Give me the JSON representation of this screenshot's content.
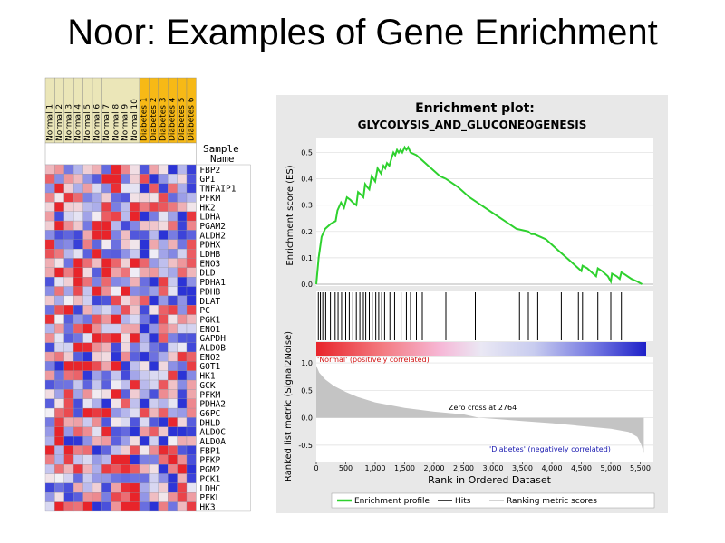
{
  "slide": {
    "title": "Noor: Examples of Gene Enrichment"
  },
  "heatmap": {
    "sample_header": [
      "Sample",
      "Name"
    ],
    "samples": [
      {
        "label": "Normal 1",
        "group": "normal"
      },
      {
        "label": "Normal 2",
        "group": "normal"
      },
      {
        "label": "Normal 3",
        "group": "normal"
      },
      {
        "label": "Normal 4",
        "group": "normal"
      },
      {
        "label": "Normal 5",
        "group": "normal"
      },
      {
        "label": "Normal 6",
        "group": "normal"
      },
      {
        "label": "Normal 7",
        "group": "normal"
      },
      {
        "label": "Normal 8",
        "group": "normal"
      },
      {
        "label": "Normal 9",
        "group": "normal"
      },
      {
        "label": "Normal 10",
        "group": "normal"
      },
      {
        "label": "Diabetes 1",
        "group": "diabetes"
      },
      {
        "label": "Diabetes 2",
        "group": "diabetes"
      },
      {
        "label": "Diabetes 3",
        "group": "diabetes"
      },
      {
        "label": "Diabetes 4",
        "group": "diabetes"
      },
      {
        "label": "Diabetes 5",
        "group": "diabetes"
      },
      {
        "label": "Diabetes 6",
        "group": "diabetes"
      }
    ],
    "genes": [
      "FBP2",
      "GPI",
      "TNFAIP1",
      "PFKM",
      "HK2",
      "LDHA",
      "PGAM2",
      "ALDH2",
      "PDHX",
      "LDHB",
      "ENO3",
      "DLD",
      "PDHA1",
      "PDHB",
      "DLAT",
      "PC",
      "PGK1",
      "ENO1",
      "GAPDH",
      "ALDOB",
      "ENO2",
      "GOT1",
      "HK1",
      "GCK",
      "PFKM",
      "PDHA2",
      "G6PC",
      "DHLD",
      "ALDOC",
      "ALDOA",
      "FBP1",
      "PFKP",
      "PGM2",
      "PCK1",
      "LDHC",
      "PFKL",
      "HK3"
    ],
    "colors": {
      "normal_bg": "#ebe6b8",
      "diabetes_bg": "#f7b916",
      "high": "#e8242a",
      "low": "#2b33d6",
      "mid": "#f2f0f5"
    }
  },
  "chart_data": {
    "type": "line",
    "title": "Enrichment plot:",
    "subtitle": "GLYCOLYSIS_AND_GLUCONEOGENESIS",
    "es_panel": {
      "ylabel": "Enrichment score (ES)",
      "yticks": [
        "0.5",
        "0.4",
        "0.3",
        "0.2",
        "0.1",
        "0.0"
      ],
      "ylim": [
        0.0,
        0.55
      ],
      "points": [
        [
          0,
          0.0
        ],
        [
          40,
          0.1
        ],
        [
          90,
          0.18
        ],
        [
          150,
          0.21
        ],
        [
          250,
          0.23
        ],
        [
          330,
          0.24
        ],
        [
          360,
          0.28
        ],
        [
          420,
          0.31
        ],
        [
          470,
          0.29
        ],
        [
          520,
          0.33
        ],
        [
          580,
          0.32
        ],
        [
          620,
          0.31
        ],
        [
          680,
          0.3
        ],
        [
          710,
          0.35
        ],
        [
          760,
          0.34
        ],
        [
          800,
          0.33
        ],
        [
          830,
          0.38
        ],
        [
          860,
          0.37
        ],
        [
          900,
          0.36
        ],
        [
          940,
          0.41
        ],
        [
          970,
          0.4
        ],
        [
          1000,
          0.39
        ],
        [
          1040,
          0.44
        ],
        [
          1070,
          0.43
        ],
        [
          1100,
          0.42
        ],
        [
          1140,
          0.45
        ],
        [
          1170,
          0.44
        ],
        [
          1200,
          0.46
        ],
        [
          1240,
          0.45
        ],
        [
          1280,
          0.48
        ],
        [
          1310,
          0.5
        ],
        [
          1340,
          0.49
        ],
        [
          1370,
          0.51
        ],
        [
          1400,
          0.5
        ],
        [
          1430,
          0.51
        ],
        [
          1460,
          0.5
        ],
        [
          1500,
          0.52
        ],
        [
          1530,
          0.51
        ],
        [
          1560,
          0.52
        ],
        [
          1600,
          0.5
        ],
        [
          1700,
          0.49
        ],
        [
          1800,
          0.47
        ],
        [
          1900,
          0.45
        ],
        [
          2000,
          0.43
        ],
        [
          2100,
          0.41
        ],
        [
          2200,
          0.4
        ],
        [
          2400,
          0.37
        ],
        [
          2600,
          0.33
        ],
        [
          2800,
          0.3
        ],
        [
          3000,
          0.27
        ],
        [
          3200,
          0.24
        ],
        [
          3400,
          0.21
        ],
        [
          3600,
          0.2
        ],
        [
          3650,
          0.19
        ],
        [
          3700,
          0.19
        ],
        [
          3800,
          0.18
        ],
        [
          3900,
          0.17
        ],
        [
          4000,
          0.15
        ],
        [
          4100,
          0.13
        ],
        [
          4200,
          0.11
        ],
        [
          4300,
          0.09
        ],
        [
          4400,
          0.07
        ],
        [
          4500,
          0.05
        ],
        [
          4520,
          0.07
        ],
        [
          4600,
          0.06
        ],
        [
          4700,
          0.04
        ],
        [
          4750,
          0.03
        ],
        [
          4780,
          0.06
        ],
        [
          4850,
          0.05
        ],
        [
          4950,
          0.03
        ],
        [
          5000,
          0.01
        ],
        [
          5020,
          0.04
        ],
        [
          5100,
          0.03
        ],
        [
          5150,
          0.02
        ],
        [
          5180,
          0.045
        ],
        [
          5250,
          0.035
        ],
        [
          5350,
          0.02
        ],
        [
          5450,
          0.01
        ],
        [
          5530,
          0.0
        ]
      ],
      "line_color": "#2ed12e"
    },
    "hits": [
      35,
      70,
      110,
      160,
      240,
      320,
      370,
      430,
      500,
      560,
      620,
      680,
      740,
      800,
      840,
      900,
      950,
      1010,
      1060,
      1110,
      1160,
      1250,
      1330,
      1440,
      1530,
      1600,
      1700,
      1800,
      2200,
      2700,
      3450,
      3600,
      3760,
      4160,
      4450,
      4520,
      4780,
      5000,
      5180
    ],
    "ranking_panel": {
      "ylabel": "Ranked list metric (Signal2Noise)",
      "yticks": [
        "1.0",
        "0.5",
        "0.0",
        "-0.5"
      ],
      "ylim": [
        -0.8,
        1.1
      ],
      "curve": [
        [
          0,
          0.95
        ],
        [
          50,
          0.82
        ],
        [
          150,
          0.7
        ],
        [
          300,
          0.58
        ],
        [
          500,
          0.47
        ],
        [
          700,
          0.38
        ],
        [
          1000,
          0.28
        ],
        [
          1500,
          0.18
        ],
        [
          2000,
          0.11
        ],
        [
          2500,
          0.06
        ],
        [
          2764,
          0.0
        ],
        [
          3000,
          -0.02
        ],
        [
          3500,
          -0.06
        ],
        [
          4000,
          -0.1
        ],
        [
          4500,
          -0.15
        ],
        [
          5000,
          -0.2
        ],
        [
          5300,
          -0.26
        ],
        [
          5450,
          -0.35
        ],
        [
          5520,
          -0.5
        ],
        [
          5560,
          -0.65
        ]
      ],
      "fill_color": "#c4c4c4",
      "zero_cross_label": "Zero cross at 2764",
      "positive_label": "'Normal' (positively correlated)",
      "negative_label": "'Diabetes' (negatively correlated)"
    },
    "xlabel": "Rank in Ordered Dataset",
    "xticks": [
      "0",
      "500",
      "1,000",
      "1,500",
      "2,000",
      "2,500",
      "3,000",
      "3,500",
      "4,000",
      "4,500",
      "5,000",
      "5,500"
    ],
    "xlim": [
      0,
      5600
    ],
    "legend": {
      "placement": "bottom",
      "entries": [
        {
          "label": "Enrichment profile",
          "color": "#2ed12e"
        },
        {
          "label": "Hits",
          "color": "#000000"
        },
        {
          "label": "Ranking metric scores",
          "color": "#c4c4c4"
        }
      ]
    },
    "colors": {
      "panel_bg": "#e8e8e8",
      "plot_bg": "#ffffff"
    }
  }
}
